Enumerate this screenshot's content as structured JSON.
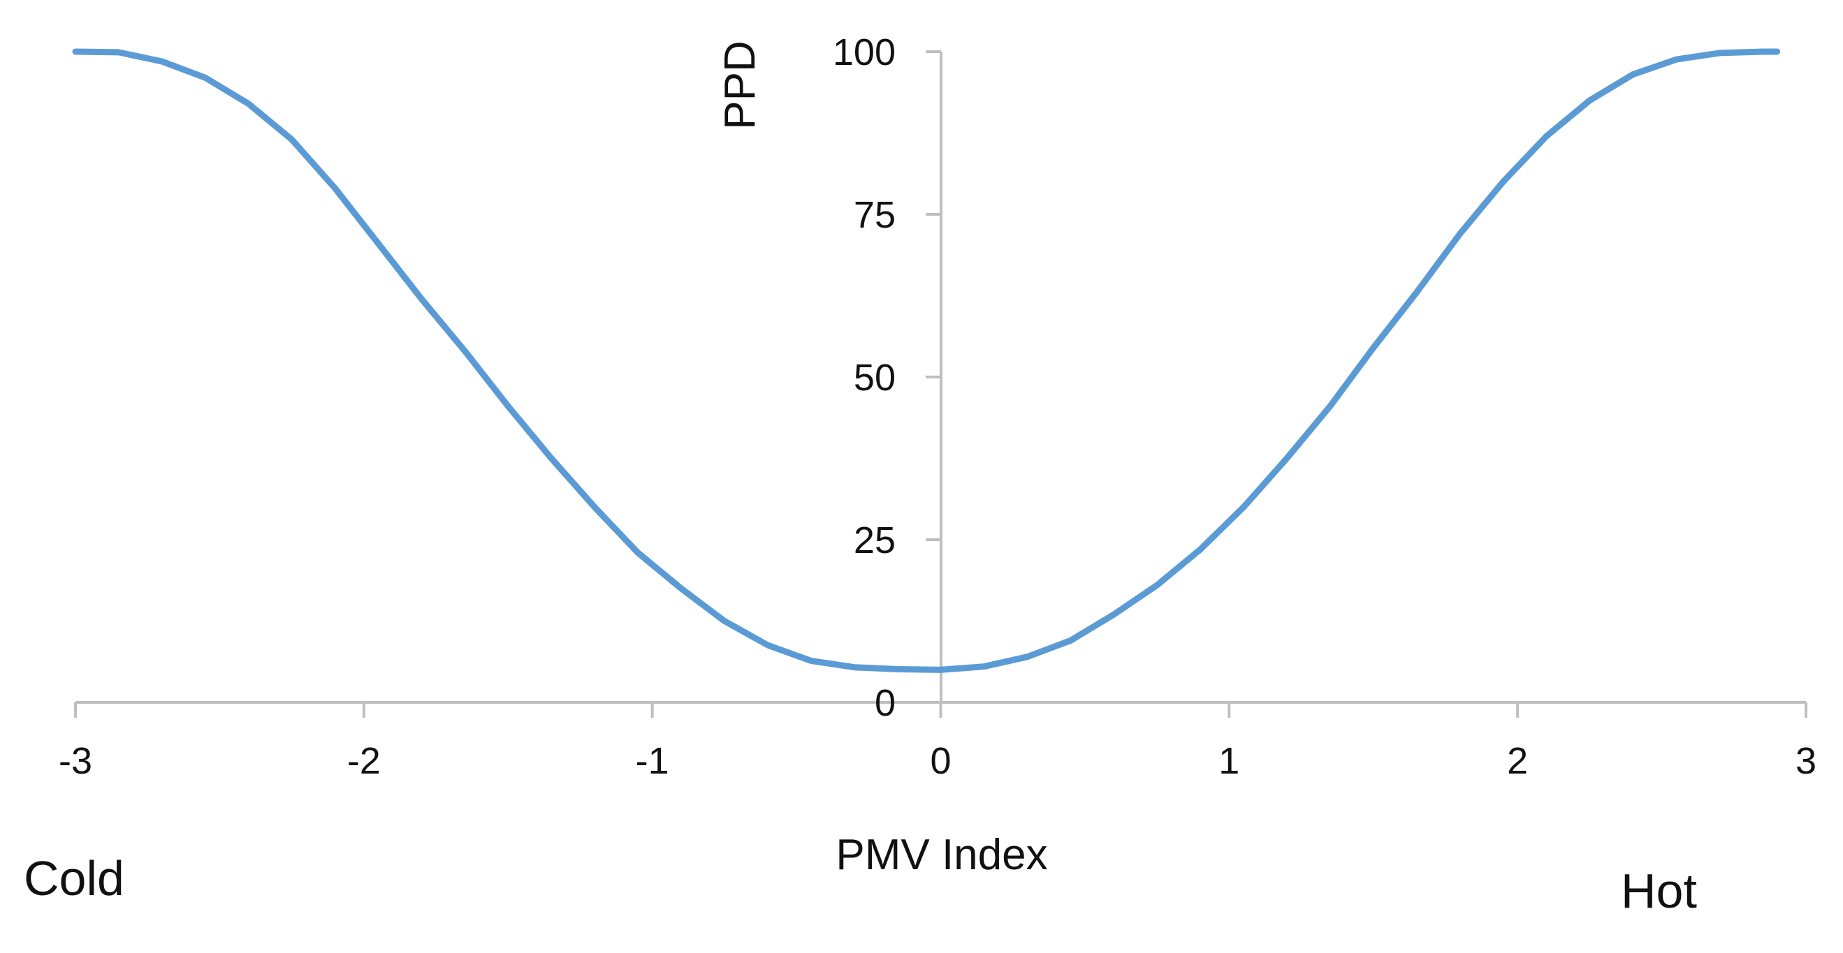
{
  "chart_data": {
    "type": "line",
    "title": "",
    "xlabel": "PMV Index",
    "ylabel": "PPD",
    "xlim": [
      -3,
      3
    ],
    "ylim": [
      0,
      100
    ],
    "x_ticks": [
      -3,
      -2,
      -1,
      0,
      1,
      2,
      3
    ],
    "x_tick_labels": [
      "-3",
      "-2",
      "-1",
      "0",
      "1",
      "2",
      "3"
    ],
    "y_ticks": [
      0,
      25,
      50,
      75,
      100
    ],
    "y_tick_labels": [
      "0",
      "25",
      "50",
      "75",
      "100"
    ],
    "annotations": {
      "left": "Cold",
      "right": "Hot"
    },
    "grid": false,
    "legend": "none",
    "series": [
      {
        "color": "#5b9bd5",
        "x": [
          -3.0,
          -2.85,
          -2.7,
          -2.55,
          -2.4,
          -2.25,
          -2.1,
          -1.95,
          -1.8,
          -1.65,
          -1.5,
          -1.35,
          -1.2,
          -1.05,
          -0.9,
          -0.75,
          -0.6,
          -0.45,
          -0.3,
          -0.15,
          0.0,
          0.15,
          0.3,
          0.45,
          0.6,
          0.75,
          0.9,
          1.05,
          1.2,
          1.35,
          1.5,
          1.65,
          1.8,
          1.95,
          2.1,
          2.25,
          2.4,
          2.55,
          2.7,
          2.85,
          2.9
        ],
        "y": [
          100,
          99.9,
          98.5,
          96,
          92,
          86.5,
          79,
          70.5,
          62,
          54,
          45.5,
          37.5,
          30,
          23,
          17.5,
          12.5,
          8.8,
          6.4,
          5.4,
          5.1,
          5.0,
          5.5,
          7.0,
          9.5,
          13.5,
          18.0,
          23.5,
          30.0,
          37.5,
          45.5,
          54.5,
          63.0,
          72.0,
          80.0,
          87.0,
          92.5,
          96.5,
          98.8,
          99.8,
          100,
          100
        ]
      }
    ]
  }
}
